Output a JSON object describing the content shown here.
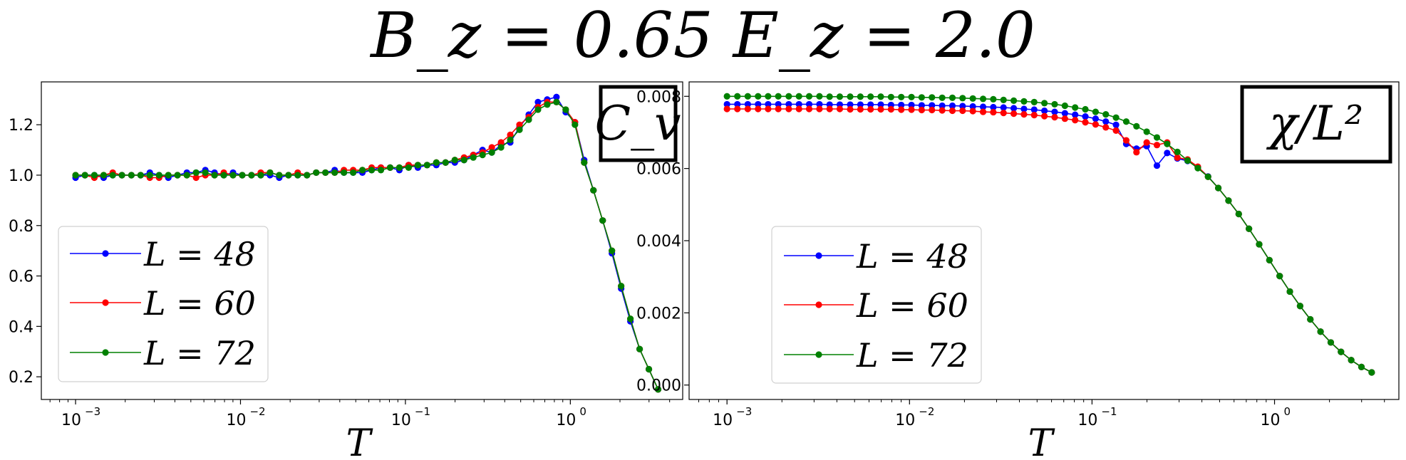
{
  "figure": {
    "title": "B_z = 0.65  E_z = 2.0"
  },
  "chart_data": [
    {
      "type": "line",
      "panel_label": "C_v",
      "xlabel": "T",
      "ylabel": "",
      "xscale": "log",
      "xlim": [
        0.00062,
        4.8
      ],
      "ylim": [
        0.11,
        1.37
      ],
      "xticks": [
        {
          "value": 0.001,
          "base": "10",
          "exp": "−3"
        },
        {
          "value": 0.01,
          "base": "10",
          "exp": "−2"
        },
        {
          "value": 0.1,
          "base": "10",
          "exp": "−1"
        },
        {
          "value": 1,
          "base": "10",
          "exp": "0"
        }
      ],
      "yticks": [
        {
          "value": 0.2,
          "label": "0.2"
        },
        {
          "value": 0.4,
          "label": "0.4"
        },
        {
          "value": 0.6,
          "label": "0.6"
        },
        {
          "value": 0.8,
          "label": "0.8"
        },
        {
          "value": 1.0,
          "label": "1.0"
        },
        {
          "value": 1.2,
          "label": "1.2"
        }
      ],
      "grid": false,
      "legend": "lower-left",
      "x": [
        0.001,
        0.00114,
        0.0013,
        0.00148,
        0.00168,
        0.00191,
        0.00218,
        0.00248,
        0.00282,
        0.00321,
        0.00365,
        0.00415,
        0.00473,
        0.00538,
        0.00612,
        0.00696,
        0.00792,
        0.00901,
        0.01025,
        0.01166,
        0.01327,
        0.0151,
        0.01718,
        0.01954,
        0.02223,
        0.0253,
        0.02878,
        0.03274,
        0.03725,
        0.04238,
        0.04822,
        0.05486,
        0.06241,
        0.07101,
        0.08079,
        0.09192,
        0.10457,
        0.11897,
        0.13535,
        0.15399,
        0.1752,
        0.19933,
        0.22678,
        0.258,
        0.29353,
        0.33396,
        0.37995,
        0.43227,
        0.49179,
        0.55952,
        0.63657,
        0.72423,
        0.82397,
        0.93744,
        1.06653,
        1.21341,
        1.38051,
        1.57062,
        1.78691,
        2.03298,
        2.31295,
        2.63146,
        2.99384,
        3.40614
      ],
      "series": [
        {
          "name": "L = 48",
          "color": "#0000ff",
          "values": [
            0.99,
            1.0,
            1.0,
            0.99,
            1.0,
            1.0,
            1.0,
            1.0,
            1.01,
            1.0,
            0.99,
            1.0,
            1.01,
            1.01,
            1.02,
            1.01,
            1.0,
            1.01,
            1.0,
            1.0,
            1.0,
            1.0,
            0.99,
            1.0,
            1.0,
            1.0,
            1.01,
            1.01,
            1.02,
            1.01,
            1.01,
            1.01,
            1.02,
            1.03,
            1.03,
            1.02,
            1.04,
            1.03,
            1.04,
            1.04,
            1.05,
            1.05,
            1.06,
            1.08,
            1.1,
            1.09,
            1.12,
            1.13,
            1.19,
            1.24,
            1.29,
            1.3,
            1.31,
            1.25,
            1.21,
            1.06,
            0.94,
            0.82,
            0.69,
            0.55,
            0.42,
            0.31,
            0.23,
            0.15
          ]
        },
        {
          "name": "L = 60",
          "color": "#ff0000",
          "values": [
            1.0,
            1.0,
            0.99,
            1.0,
            1.01,
            1.0,
            1.0,
            1.0,
            0.99,
            0.99,
            1.0,
            1.0,
            1.0,
            0.99,
            1.0,
            1.0,
            1.01,
            1.0,
            1.0,
            1.0,
            1.01,
            1.01,
            1.0,
            1.0,
            1.01,
            1.0,
            1.01,
            1.01,
            1.01,
            1.02,
            1.02,
            1.02,
            1.03,
            1.03,
            1.03,
            1.03,
            1.04,
            1.04,
            1.04,
            1.05,
            1.05,
            1.06,
            1.07,
            1.08,
            1.09,
            1.11,
            1.13,
            1.16,
            1.2,
            1.23,
            1.27,
            1.29,
            1.29,
            1.26,
            1.21,
            1.05,
            0.94,
            0.82,
            0.7,
            0.56,
            0.43,
            0.31,
            0.23,
            0.15
          ]
        },
        {
          "name": "L = 72",
          "color": "#008000",
          "values": [
            1.0,
            1.0,
            1.0,
            1.0,
            1.0,
            1.0,
            1.0,
            1.0,
            1.0,
            1.0,
            1.0,
            1.0,
            1.0,
            1.01,
            1.01,
            1.0,
            1.0,
            1.0,
            1.0,
            1.0,
            1.0,
            1.01,
            1.0,
            1.0,
            1.0,
            1.0,
            1.01,
            1.01,
            1.01,
            1.01,
            1.01,
            1.02,
            1.02,
            1.02,
            1.03,
            1.03,
            1.03,
            1.04,
            1.04,
            1.05,
            1.05,
            1.06,
            1.06,
            1.07,
            1.08,
            1.09,
            1.11,
            1.14,
            1.18,
            1.22,
            1.26,
            1.28,
            1.29,
            1.26,
            1.2,
            1.05,
            0.94,
            0.82,
            0.7,
            0.56,
            0.43,
            0.31,
            0.23,
            0.15
          ]
        }
      ]
    },
    {
      "type": "line",
      "panel_label": "χ/L²",
      "xlabel": "T",
      "ylabel": "",
      "xscale": "log",
      "xlim": [
        0.00062,
        4.8
      ],
      "ylim": [
        -0.0004,
        0.0084
      ],
      "xticks": [
        {
          "value": 0.001,
          "base": "10",
          "exp": "−3"
        },
        {
          "value": 0.01,
          "base": "10",
          "exp": "−2"
        },
        {
          "value": 0.1,
          "base": "10",
          "exp": "−1"
        },
        {
          "value": 1,
          "base": "10",
          "exp": "0"
        }
      ],
      "yticks": [
        {
          "value": 0.0,
          "label": "0.000"
        },
        {
          "value": 0.002,
          "label": "0.002"
        },
        {
          "value": 0.004,
          "label": "0.004"
        },
        {
          "value": 0.006,
          "label": "0.006"
        },
        {
          "value": 0.008,
          "label": "0.008"
        }
      ],
      "grid": false,
      "legend": "lower-left",
      "x": [
        0.001,
        0.00114,
        0.0013,
        0.00148,
        0.00168,
        0.00191,
        0.00218,
        0.00248,
        0.00282,
        0.00321,
        0.00365,
        0.00415,
        0.00473,
        0.00538,
        0.00612,
        0.00696,
        0.00792,
        0.00901,
        0.01025,
        0.01166,
        0.01327,
        0.0151,
        0.01718,
        0.01954,
        0.02223,
        0.0253,
        0.02878,
        0.03274,
        0.03725,
        0.04238,
        0.04822,
        0.05486,
        0.06241,
        0.07101,
        0.08079,
        0.09192,
        0.10457,
        0.11897,
        0.13535,
        0.15399,
        0.1752,
        0.19933,
        0.22678,
        0.258,
        0.29353,
        0.33396,
        0.37995,
        0.43227,
        0.49179,
        0.55952,
        0.63657,
        0.72423,
        0.82397,
        0.93744,
        1.06653,
        1.21341,
        1.38051,
        1.57062,
        1.78691,
        2.03298,
        2.31295,
        2.63146,
        2.99384,
        3.40614
      ],
      "series": [
        {
          "name": "L = 48",
          "color": "#0000ff",
          "values": [
            0.00778,
            0.00778,
            0.00778,
            0.00778,
            0.00778,
            0.00778,
            0.00778,
            0.00778,
            0.00778,
            0.00778,
            0.00777,
            0.00777,
            0.00777,
            0.00777,
            0.00777,
            0.00777,
            0.00776,
            0.00776,
            0.00776,
            0.00775,
            0.00775,
            0.00774,
            0.00774,
            0.00773,
            0.00772,
            0.00771,
            0.0077,
            0.00769,
            0.00767,
            0.00765,
            0.00763,
            0.0076,
            0.00757,
            0.00753,
            0.00749,
            0.00744,
            0.00738,
            0.0073,
            0.00721,
            0.00668,
            0.00655,
            0.00662,
            0.00608,
            0.00643,
            0.00628,
            0.00621,
            0.00604,
            0.00578,
            0.00546,
            0.00511,
            0.00474,
            0.00433,
            0.0039,
            0.00346,
            0.00302,
            0.00259,
            0.00219,
            0.00182,
            0.00148,
            0.00118,
            0.00092,
            0.00069,
            0.0005,
            0.00035
          ]
        },
        {
          "name": "L = 60",
          "color": "#ff0000",
          "values": [
            0.00765,
            0.00765,
            0.00765,
            0.00765,
            0.00765,
            0.00765,
            0.00765,
            0.00765,
            0.00765,
            0.00765,
            0.00765,
            0.00765,
            0.00764,
            0.00764,
            0.00764,
            0.00764,
            0.00764,
            0.00763,
            0.00763,
            0.00762,
            0.00762,
            0.00761,
            0.0076,
            0.0076,
            0.00759,
            0.00757,
            0.00756,
            0.00754,
            0.00752,
            0.0075,
            0.00748,
            0.00745,
            0.00742,
            0.00738,
            0.00734,
            0.00728,
            0.00722,
            0.00714,
            0.00705,
            0.00678,
            0.00645,
            0.00672,
            0.00665,
            0.00672,
            0.0063,
            0.00625,
            0.00605,
            0.00577,
            0.00546,
            0.00511,
            0.00474,
            0.00433,
            0.0039,
            0.00346,
            0.00302,
            0.00259,
            0.00219,
            0.00182,
            0.00148,
            0.00118,
            0.00092,
            0.00069,
            0.0005,
            0.00035
          ]
        },
        {
          "name": "L = 72",
          "color": "#008000",
          "values": [
            0.008,
            0.008,
            0.008,
            0.008,
            0.008,
            0.008,
            0.008,
            0.008,
            0.008,
            0.008,
            0.00799,
            0.00799,
            0.00799,
            0.00799,
            0.00799,
            0.00799,
            0.00798,
            0.00798,
            0.00798,
            0.00797,
            0.00797,
            0.00796,
            0.00796,
            0.00795,
            0.00794,
            0.00793,
            0.00792,
            0.0079,
            0.00788,
            0.00786,
            0.00784,
            0.00781,
            0.00778,
            0.00774,
            0.00769,
            0.00764,
            0.00757,
            0.0075,
            0.00741,
            0.0073,
            0.00717,
            0.00702,
            0.00686,
            0.00668,
            0.00646,
            0.00622,
            0.00601,
            0.00577,
            0.00546,
            0.00511,
            0.00474,
            0.00433,
            0.0039,
            0.00346,
            0.00302,
            0.00259,
            0.00219,
            0.00182,
            0.00148,
            0.00118,
            0.00092,
            0.00069,
            0.0005,
            0.00035
          ]
        }
      ]
    }
  ]
}
